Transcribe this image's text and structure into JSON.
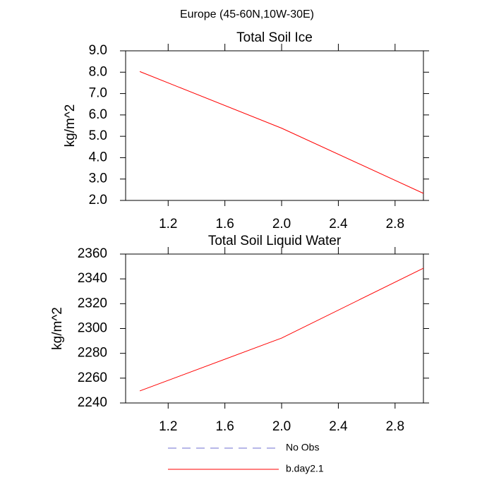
{
  "title": "Europe (45-60N,10W-30E)",
  "legend": [
    {
      "name": "No Obs",
      "color": "#6f6fd0",
      "dash": true
    },
    {
      "name": "b.day2.1",
      "color": "#ff0000",
      "dash": false
    }
  ],
  "chart_data": [
    {
      "type": "line",
      "title": "Total Soil Ice",
      "y_label": "kg/m^2",
      "x": [
        1,
        2,
        3
      ],
      "series": [
        {
          "color": "#ff0000",
          "values": [
            8.03,
            5.38,
            2.33
          ]
        }
      ],
      "xlim": [
        0.9,
        3.0
      ],
      "xticks": [
        1.2,
        1.6,
        {
          "value": 2,
          "label": "2.0"
        },
        2.4,
        2.8
      ],
      "ylim": [
        2,
        9
      ],
      "yticks": [
        {
          "value": 2,
          "label": "2.0"
        },
        {
          "value": 3,
          "label": "3.0"
        },
        {
          "value": 4,
          "label": "4.0"
        },
        {
          "value": 5,
          "label": "5.0"
        },
        {
          "value": 6,
          "label": "6.0"
        },
        {
          "value": 7,
          "label": "7.0"
        },
        {
          "value": 8,
          "label": "8.0"
        },
        {
          "value": 9,
          "label": "9.0"
        }
      ]
    },
    {
      "type": "line",
      "title": "Total Soil Liquid Water",
      "y_label": "kg/m^2",
      "x": [
        1,
        2,
        3
      ],
      "series": [
        {
          "color": "#ff0000",
          "values": [
            2249.7,
            2292.3,
            2348.6
          ]
        }
      ],
      "xlim": [
        0.9,
        3.0
      ],
      "xticks": [
        1.2,
        1.6,
        {
          "value": 2,
          "label": "2.0"
        },
        2.4,
        2.8
      ],
      "ylim": [
        2240,
        2360
      ],
      "yticks": [
        2240,
        2260,
        2280,
        2300,
        2320,
        2340,
        2360
      ]
    }
  ]
}
